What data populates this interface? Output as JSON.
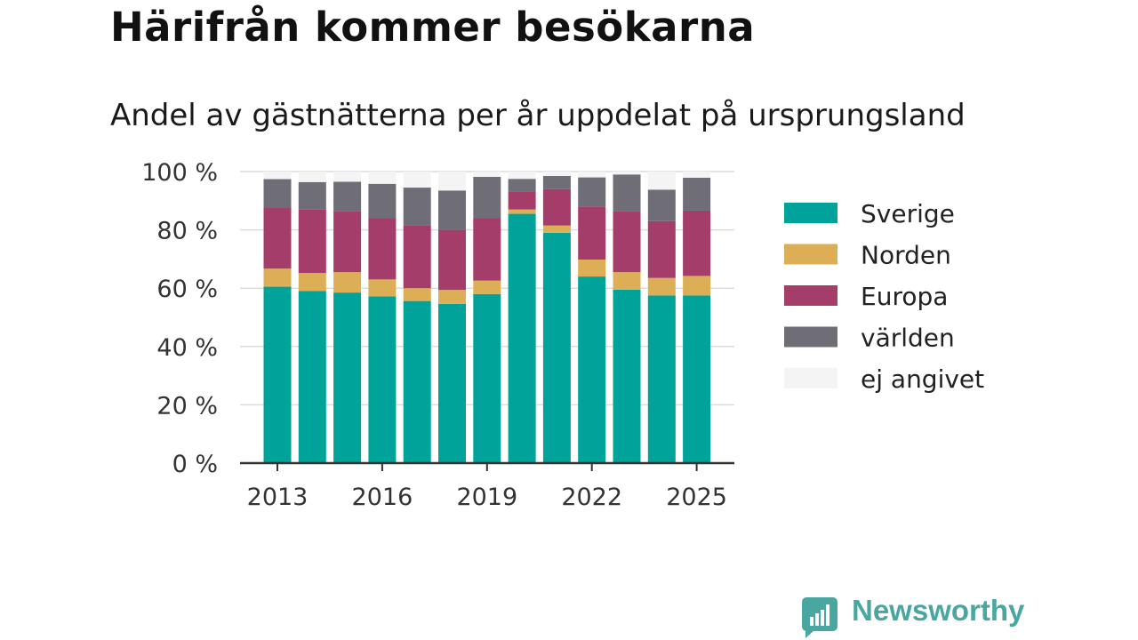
{
  "title": "Härifrån kommer besökarna",
  "subtitle": "Andel av gästnätterna per år uppdelat på ursprungsland",
  "brand": {
    "name": "Newsworthy",
    "icon": "newsworthy-logo-icon",
    "color": "#4aa6a0"
  },
  "chart_data": {
    "type": "bar",
    "stacked": true,
    "x": [
      2013,
      2014,
      2015,
      2016,
      2017,
      2018,
      2019,
      2020,
      2021,
      2022,
      2023,
      2024,
      2025
    ],
    "x_tick_labels": [
      "2013",
      "2016",
      "2019",
      "2022",
      "2025"
    ],
    "y_tick_labels": [
      "0 %",
      "20 %",
      "40 %",
      "60 %",
      "80 %",
      "100 %"
    ],
    "ylim": [
      0,
      100
    ],
    "grid": true,
    "legend_position": "right",
    "series": [
      {
        "name": "Sverige",
        "color": "#00a39a",
        "values": [
          60.5,
          59.0,
          58.5,
          57.2,
          55.6,
          54.6,
          58.0,
          85.5,
          79.0,
          64.0,
          59.5,
          57.5,
          57.5
        ]
      },
      {
        "name": "Norden",
        "color": "#dcaf57",
        "values": [
          6.2,
          6.2,
          7.0,
          5.8,
          4.4,
          4.8,
          4.6,
          1.5,
          2.5,
          5.8,
          6.0,
          6.0,
          6.7
        ]
      },
      {
        "name": "Europa",
        "color": "#a43d69",
        "values": [
          20.8,
          21.8,
          21.0,
          21.0,
          21.6,
          20.6,
          21.4,
          6.0,
          12.5,
          18.2,
          21.0,
          19.5,
          22.4
        ]
      },
      {
        "name": "världen",
        "color": "#6f6e76",
        "values": [
          9.9,
          9.4,
          10.0,
          11.8,
          12.9,
          13.5,
          14.2,
          4.5,
          4.5,
          10.0,
          12.5,
          10.8,
          11.3
        ]
      },
      {
        "name": "ej angivet",
        "color": "#f5f4f5",
        "values": [
          2.6,
          3.6,
          3.5,
          4.2,
          5.5,
          6.5,
          1.8,
          2.5,
          1.5,
          2.0,
          1.0,
          6.2,
          2.1
        ]
      }
    ]
  }
}
